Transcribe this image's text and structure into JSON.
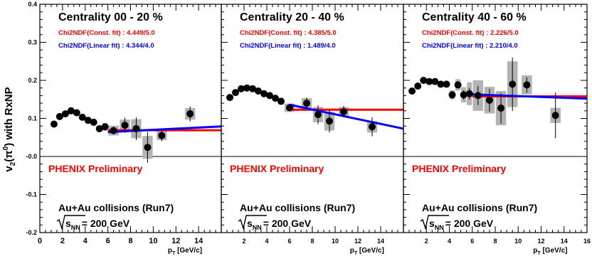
{
  "figure": {
    "ylabel": "v2(π0) with RxNP",
    "xlabel": "pT [GeV/c]",
    "colors": {
      "const_fit": "#ff0000",
      "linear_fit": "#0000ff",
      "points": "#000000",
      "error_box": "#b3b3b3",
      "frame": "#000000"
    }
  },
  "chart_data": [
    {
      "type": "scatter",
      "panel": "left",
      "title": "Centrality 00 - 20 %",
      "chi2_const": "Chi2NDF(Const. fit) : 4.449/5.0",
      "chi2_linear": "Chi2NDF(Linear fit) : 4.344/4.0",
      "prelim": "PHENIX Preliminary",
      "collision": "Au+Au collisions (Run7)",
      "energy": "= 200 GeV",
      "xlim": [
        0,
        16
      ],
      "ylim": [
        -0.2,
        0.4
      ],
      "x_ticks": [
        0,
        2,
        4,
        6,
        8,
        10,
        12,
        14
      ],
      "y_ticks": [
        -0.2,
        -0.1,
        0.0,
        0.1,
        0.2,
        0.3,
        0.4
      ],
      "y_tick_labels": [
        "-0.2",
        "-0.1",
        "-0.0",
        "0.1",
        "0.2",
        "0.3",
        "0.4"
      ],
      "zero_line": 0.0,
      "x": [
        1.25,
        1.75,
        2.25,
        2.75,
        3.25,
        3.75,
        4.25,
        4.75,
        5.25,
        5.75,
        6.5,
        7.5,
        8.5,
        9.5,
        10.75,
        13.25
      ],
      "y": [
        0.085,
        0.105,
        0.112,
        0.12,
        0.115,
        0.103,
        0.095,
        0.09,
        0.073,
        0.078,
        0.068,
        0.082,
        0.073,
        0.024,
        0.055,
        0.112
      ],
      "stat_err": [
        0.004,
        0.004,
        0.004,
        0.004,
        0.004,
        0.004,
        0.004,
        0.005,
        0.006,
        0.007,
        0.01,
        0.02,
        0.03,
        0.04,
        0.015,
        0.02
      ],
      "sys_err": [
        0.005,
        0.006,
        0.007,
        0.008,
        0.007,
        0.007,
        0.007,
        0.008,
        0.008,
        0.01,
        0.013,
        0.015,
        0.025,
        0.03,
        0.012,
        0.015
      ],
      "const_fit": {
        "x": [
          6,
          16
        ],
        "y": [
          0.069,
          0.069
        ]
      },
      "linear_fit": {
        "x": [
          6,
          16
        ],
        "y": [
          0.064,
          0.079
        ]
      }
    },
    {
      "type": "scatter",
      "panel": "middle",
      "title": "Centrality 20 - 40 %",
      "chi2_const": "Chi2NDF(Const. fit) : 4.385/5.0",
      "chi2_linear": "Chi2NDF(Linear fit) : 1.489/4.0",
      "prelim": "PHENIX Preliminary",
      "collision": "Au+Au collisions (Run7)",
      "energy": "= 200 GeV",
      "xlim": [
        0,
        16
      ],
      "ylim": [
        -0.2,
        0.4
      ],
      "x_ticks": [
        2,
        4,
        6,
        8,
        10,
        12,
        14
      ],
      "zero_line": 0.0,
      "x": [
        0.75,
        1.25,
        1.75,
        2.25,
        2.75,
        3.25,
        3.75,
        4.25,
        4.75,
        5.25,
        6.0,
        7.5,
        8.5,
        9.5,
        10.75,
        13.25
      ],
      "y": [
        0.155,
        0.168,
        0.178,
        0.18,
        0.178,
        0.172,
        0.165,
        0.16,
        0.153,
        0.145,
        0.128,
        0.14,
        0.11,
        0.093,
        0.118,
        0.078
      ],
      "stat_err": [
        0.004,
        0.004,
        0.004,
        0.004,
        0.004,
        0.004,
        0.004,
        0.004,
        0.005,
        0.006,
        0.008,
        0.015,
        0.025,
        0.03,
        0.015,
        0.025
      ],
      "sys_err": [
        0.006,
        0.007,
        0.007,
        0.007,
        0.007,
        0.007,
        0.007,
        0.007,
        0.007,
        0.009,
        0.011,
        0.013,
        0.02,
        0.025,
        0.012,
        0.015
      ],
      "const_fit": {
        "x": [
          6,
          16
        ],
        "y": [
          0.123,
          0.123
        ]
      },
      "linear_fit": {
        "x": [
          6,
          16
        ],
        "y": [
          0.136,
          0.073
        ]
      }
    },
    {
      "type": "scatter",
      "panel": "right",
      "title": "Centrality 40 - 60 %",
      "chi2_const": "Chi2NDF(Const. fit) : 2.226/5.0",
      "chi2_linear": "Chi2NDF(Linear fit) : 2.210/4.0",
      "prelim": "PHENIX Preliminary",
      "collision": "Au+Au collisions (Run7)",
      "energy": "= 200 GeV",
      "xlim": [
        0,
        16
      ],
      "ylim": [
        -0.2,
        0.4
      ],
      "x_ticks": [
        2,
        4,
        6,
        8,
        10,
        12,
        14,
        16
      ],
      "zero_line": 0.0,
      "x": [
        0.75,
        1.25,
        1.75,
        2.25,
        2.75,
        3.25,
        3.75,
        4.25,
        4.75,
        5.25,
        5.75,
        6.5,
        7.5,
        8.5,
        9.5,
        10.75,
        13.25
      ],
      "y": [
        0.172,
        0.185,
        0.2,
        0.197,
        0.197,
        0.19,
        0.19,
        0.162,
        0.188,
        0.162,
        0.165,
        0.16,
        0.148,
        0.127,
        0.19,
        0.188,
        0.108
      ],
      "stat_err": [
        0.005,
        0.005,
        0.005,
        0.005,
        0.005,
        0.005,
        0.006,
        0.007,
        0.009,
        0.012,
        0.015,
        0.025,
        0.03,
        0.04,
        0.07,
        0.02,
        0.06
      ],
      "sys_err": [
        0.007,
        0.007,
        0.007,
        0.007,
        0.007,
        0.008,
        0.008,
        0.012,
        0.015,
        0.02,
        0.03,
        0.04,
        0.035,
        0.045,
        0.06,
        0.025,
        0.02
      ],
      "const_fit": {
        "x": [
          6,
          16
        ],
        "y": [
          0.158,
          0.158
        ]
      },
      "linear_fit": {
        "x": [
          6,
          16
        ],
        "y": [
          0.163,
          0.152
        ]
      }
    }
  ]
}
